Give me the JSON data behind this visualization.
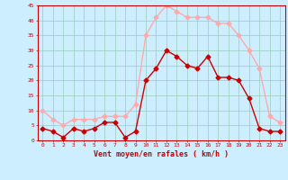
{
  "x": [
    0,
    1,
    2,
    3,
    4,
    5,
    6,
    7,
    8,
    9,
    10,
    11,
    12,
    13,
    14,
    15,
    16,
    17,
    18,
    19,
    20,
    21,
    22,
    23
  ],
  "wind_mean": [
    4,
    3,
    1,
    4,
    3,
    4,
    6,
    6,
    1,
    3,
    20,
    24,
    30,
    28,
    25,
    24,
    28,
    21,
    21,
    20,
    14,
    4,
    3,
    3
  ],
  "wind_gust": [
    10,
    7,
    5,
    7,
    7,
    7,
    8,
    8,
    8,
    12,
    35,
    41,
    45,
    43,
    41,
    41,
    41,
    39,
    39,
    35,
    30,
    24,
    8,
    6
  ],
  "mean_color": "#cc0000",
  "gust_color": "#ffaaaa",
  "bg_color": "#cceeff",
  "grid_color": "#99ccbb",
  "xlabel": "Vent moyen/en rafales ( km/h )",
  "ylim": [
    0,
    45
  ],
  "yticks": [
    0,
    5,
    10,
    15,
    20,
    25,
    30,
    35,
    40,
    45
  ],
  "xticks": [
    0,
    1,
    2,
    3,
    4,
    5,
    6,
    7,
    8,
    9,
    10,
    11,
    12,
    13,
    14,
    15,
    16,
    17,
    18,
    19,
    20,
    21,
    22,
    23
  ],
  "markersize": 2.5,
  "linewidth": 1.0,
  "tick_color": "#cc0000",
  "axis_color": "#cc0000",
  "xlabel_color": "#cc0000"
}
